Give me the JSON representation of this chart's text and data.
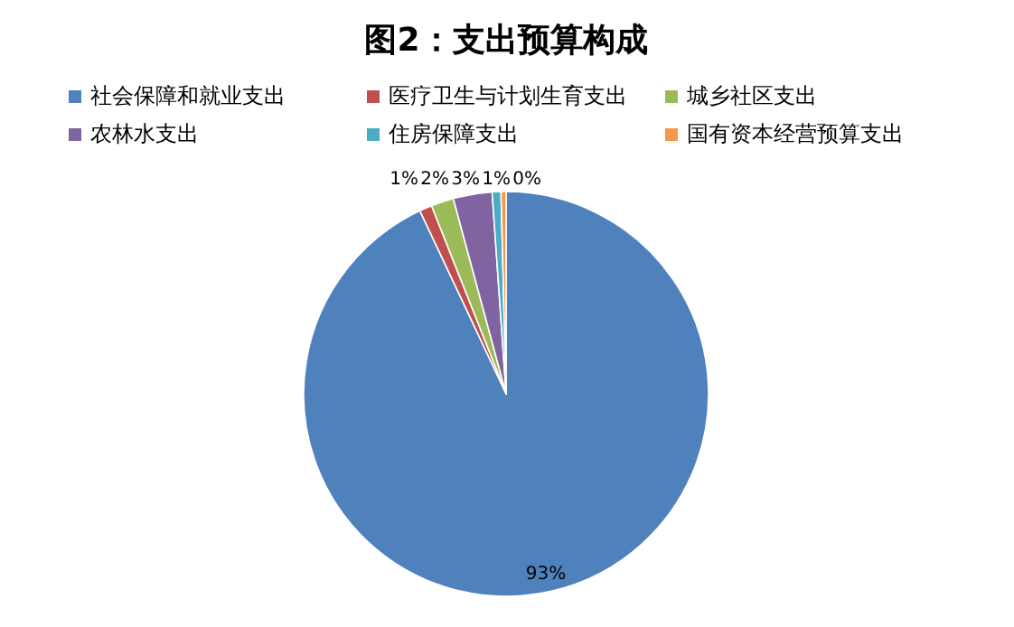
{
  "chart_data": {
    "type": "pie",
    "title": "图2：支出预算构成",
    "categories": [
      "社会保障和就业支出",
      "医疗卫生与计划生育支出",
      "城乡社区支出",
      "农林水支出",
      "住房保障支出",
      "国有资本经营预算支出"
    ],
    "values": [
      93.0,
      1.0,
      1.8,
      3.1,
      0.7,
      0.4
    ],
    "colors": [
      "#4f81bd",
      "#c0504d",
      "#9bbb59",
      "#8064a2",
      "#4bacc6",
      "#f79646"
    ],
    "value_labels": [
      "93%",
      "1%",
      "2%",
      "3%",
      "1%",
      "0%"
    ],
    "legend": "top"
  }
}
